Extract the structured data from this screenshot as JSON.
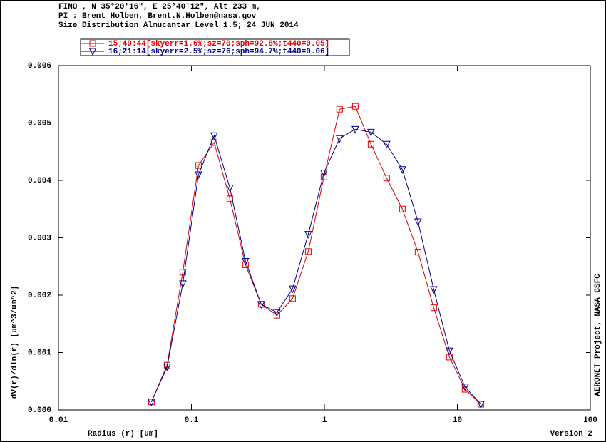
{
  "header": [
    "FINO , N 35°20'16\", E 25°40'12\", Alt 233 m,",
    "PI : Brent Holben, Brent.N.Holben@nasa.gov",
    "Size Distribution Almucantar Level 1.5; 24 JUN 2014"
  ],
  "side_note": "AERONET Project, NASA GSFC",
  "footer_note": "Version 2",
  "chart_data": {
    "type": "line",
    "x_label": "Radius (r) [um]",
    "y_label": "dV(r)/dln(r) [um^3/um^2]",
    "x_scale": "log",
    "x": [
      0.05,
      0.065604,
      0.086077,
      0.112939,
      0.148184,
      0.194429,
      0.255105,
      0.334716,
      0.439173,
      0.576227,
      0.756052,
      0.991996,
      1.301571,
      1.707757,
      2.240702,
      2.939966,
      3.857452,
      5.06126,
      6.640745,
      8.713145,
      11.432287,
      15
    ],
    "series": [
      {
        "name": "15;49:44[skyerr=1.6%;sz=70;sph=92.8%;t440=0.05]",
        "color": "#dd0000",
        "marker": "square",
        "values": [
          0.00014,
          0.00078,
          0.0024,
          0.00426,
          0.00466,
          0.00368,
          0.00253,
          0.00184,
          0.00165,
          0.00194,
          0.00276,
          0.00406,
          0.00524,
          0.00529,
          0.00463,
          0.00404,
          0.0035,
          0.00275,
          0.00178,
          0.00092,
          0.00036,
          0.0001
        ]
      },
      {
        "name": "16;21:14[skyerr=2.5%;sz=76;sph=94.7%;t440=0.06]",
        "color": "#000088",
        "marker": "triangle-down",
        "values": [
          0.00014,
          0.00075,
          0.0022,
          0.0041,
          0.00478,
          0.00387,
          0.00259,
          0.00184,
          0.0017,
          0.00211,
          0.00306,
          0.00413,
          0.00473,
          0.00489,
          0.00484,
          0.00463,
          0.00419,
          0.00328,
          0.0021,
          0.00103,
          0.0004,
          0.0001
        ]
      }
    ],
    "xlim": [
      0.01,
      100
    ],
    "xticks": [
      0.01,
      0.1,
      1,
      10,
      100
    ],
    "ylim": [
      0,
      0.006
    ],
    "yticks": [
      {
        "value": 0,
        "label": "0.000"
      },
      {
        "value": 0.001,
        "label": "0.001"
      },
      {
        "value": 0.002,
        "label": "0.002"
      },
      {
        "value": 0.003,
        "label": "0.003"
      },
      {
        "value": 0.004,
        "label": "0.004"
      },
      {
        "value": 0.005,
        "label": "0.005"
      },
      {
        "value": 0.006,
        "label": "0.006"
      }
    ]
  }
}
